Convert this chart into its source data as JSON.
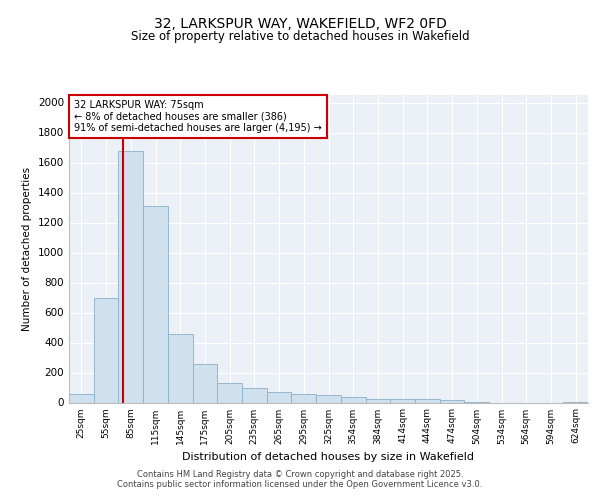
{
  "title_line1": "32, LARKSPUR WAY, WAKEFIELD, WF2 0FD",
  "title_line2": "Size of property relative to detached houses in Wakefield",
  "xlabel": "Distribution of detached houses by size in Wakefield",
  "ylabel": "Number of detached properties",
  "bar_color": "#cfe0ee",
  "bar_edge_color": "#8ab0c8",
  "background_color": "#eaf0f6",
  "grid_color": "#ffffff",
  "categories": [
    "25sqm",
    "55sqm",
    "85sqm",
    "115sqm",
    "145sqm",
    "175sqm",
    "205sqm",
    "235sqm",
    "265sqm",
    "295sqm",
    "325sqm",
    "354sqm",
    "384sqm",
    "414sqm",
    "444sqm",
    "474sqm",
    "504sqm",
    "534sqm",
    "564sqm",
    "594sqm",
    "624sqm"
  ],
  "values": [
    55,
    700,
    1680,
    1310,
    460,
    255,
    130,
    100,
    70,
    55,
    50,
    40,
    25,
    25,
    25,
    20,
    5,
    0,
    0,
    0,
    5
  ],
  "property_size_label": "32 LARKSPUR WAY: 75sqm",
  "annotation_line2": "← 8% of detached houses are smaller (386)",
  "annotation_line3": "91% of semi-detached houses are larger (4,195) →",
  "vline_color": "#cc0000",
  "ylim": [
    0,
    2050
  ],
  "yticks": [
    0,
    200,
    400,
    600,
    800,
    1000,
    1200,
    1400,
    1600,
    1800,
    2000
  ],
  "vline_x_index": 1.667,
  "footer_line1": "Contains HM Land Registry data © Crown copyright and database right 2025.",
  "footer_line2": "Contains public sector information licensed under the Open Government Licence v3.0."
}
